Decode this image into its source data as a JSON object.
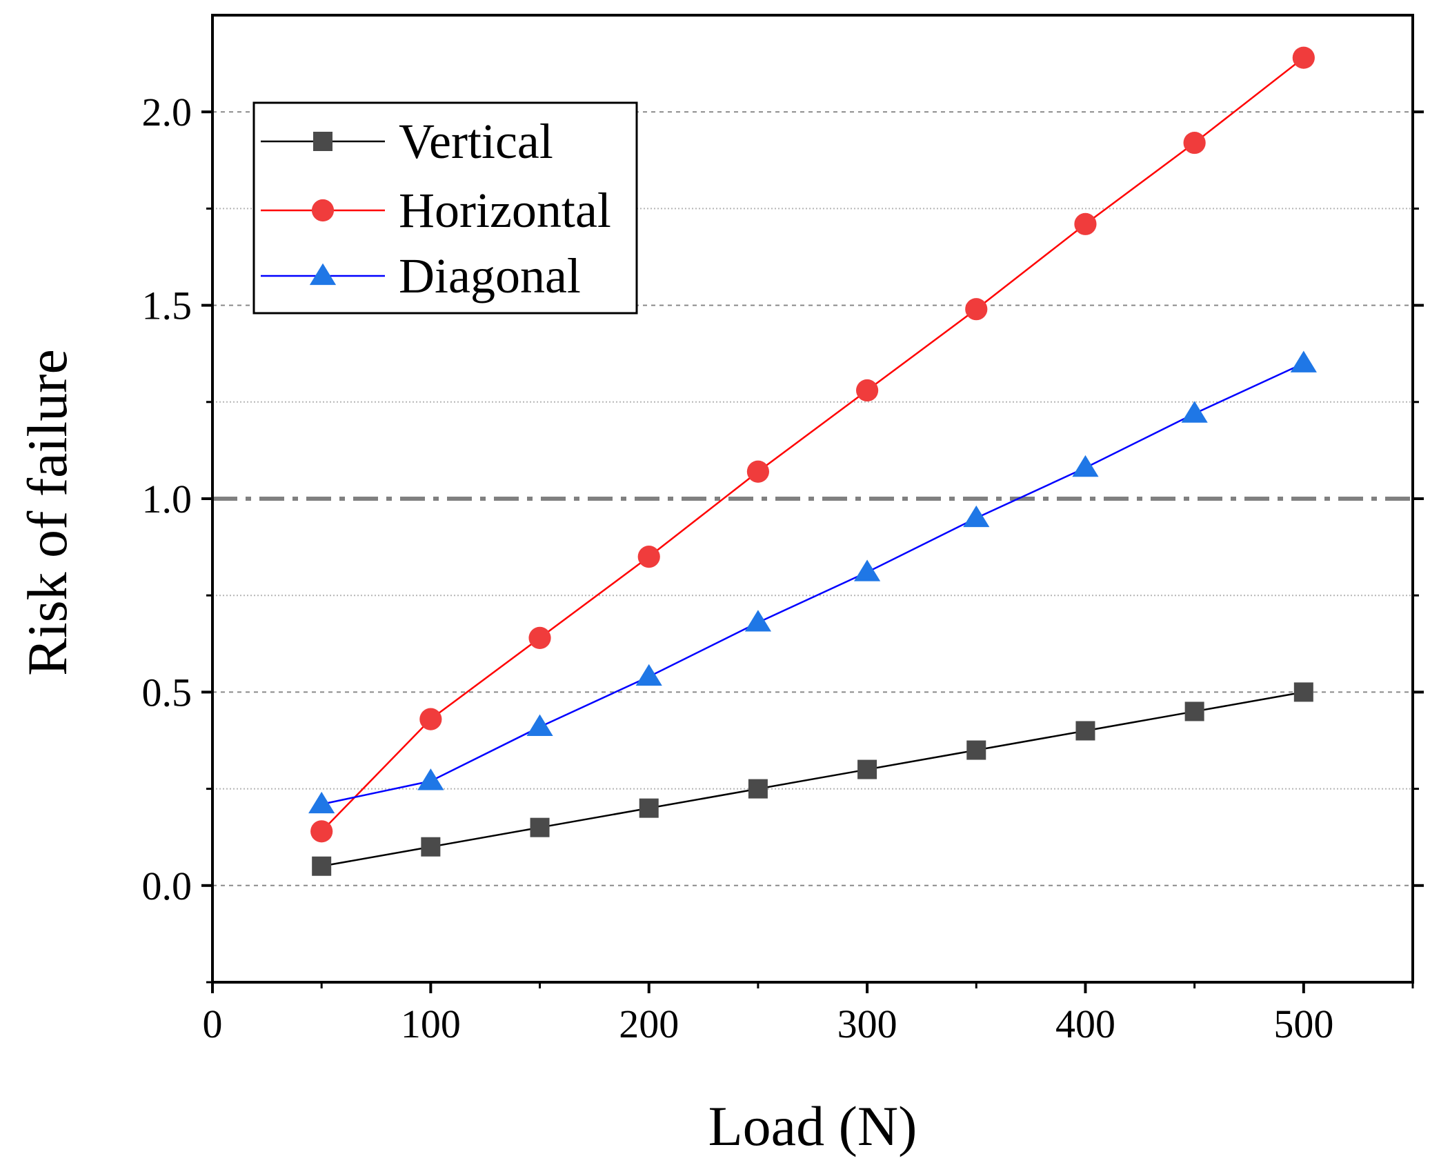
{
  "chart_data": {
    "type": "line",
    "xlabel": "Load (N)",
    "ylabel": "Risk of failure",
    "xlim": [
      0,
      550
    ],
    "ylim": [
      -0.25,
      2.25
    ],
    "x_ticks": [
      0,
      100,
      200,
      300,
      400,
      500
    ],
    "x_tick_labels": [
      "0",
      "100",
      "200",
      "300",
      "400",
      "500"
    ],
    "y_ticks": [
      0,
      0.5,
      1.0,
      1.5,
      2.0
    ],
    "y_tick_labels": [
      "0.0",
      "0.5",
      "1.0",
      "1.5",
      "2.0"
    ],
    "y_minor_gridlines": [
      0.25,
      0.75,
      1.25,
      1.75
    ],
    "grid": "horizontal dashed",
    "reference_line": {
      "y": 1.0,
      "style": "dash-dot",
      "color": "#808080"
    },
    "legend_position": "top-left",
    "x": [
      50,
      100,
      150,
      200,
      250,
      300,
      350,
      400,
      450,
      500
    ],
    "series": [
      {
        "name": "Vertical",
        "marker": "square",
        "color": "#4a4a4a",
        "line_color": "#000000",
        "values": [
          0.05,
          0.1,
          0.15,
          0.2,
          0.25,
          0.3,
          0.35,
          0.4,
          0.45,
          0.5
        ]
      },
      {
        "name": "Horizontal",
        "marker": "circle",
        "color": "#f03c3c",
        "line_color": "#ff0000",
        "values": [
          0.14,
          0.43,
          0.64,
          0.85,
          1.07,
          1.28,
          1.49,
          1.71,
          1.92,
          2.14
        ]
      },
      {
        "name": "Diagonal",
        "marker": "triangle",
        "color": "#1f77e6",
        "line_color": "#0000ff",
        "values": [
          0.21,
          0.27,
          0.41,
          0.54,
          0.68,
          0.81,
          0.95,
          1.08,
          1.22,
          1.35
        ]
      }
    ]
  }
}
